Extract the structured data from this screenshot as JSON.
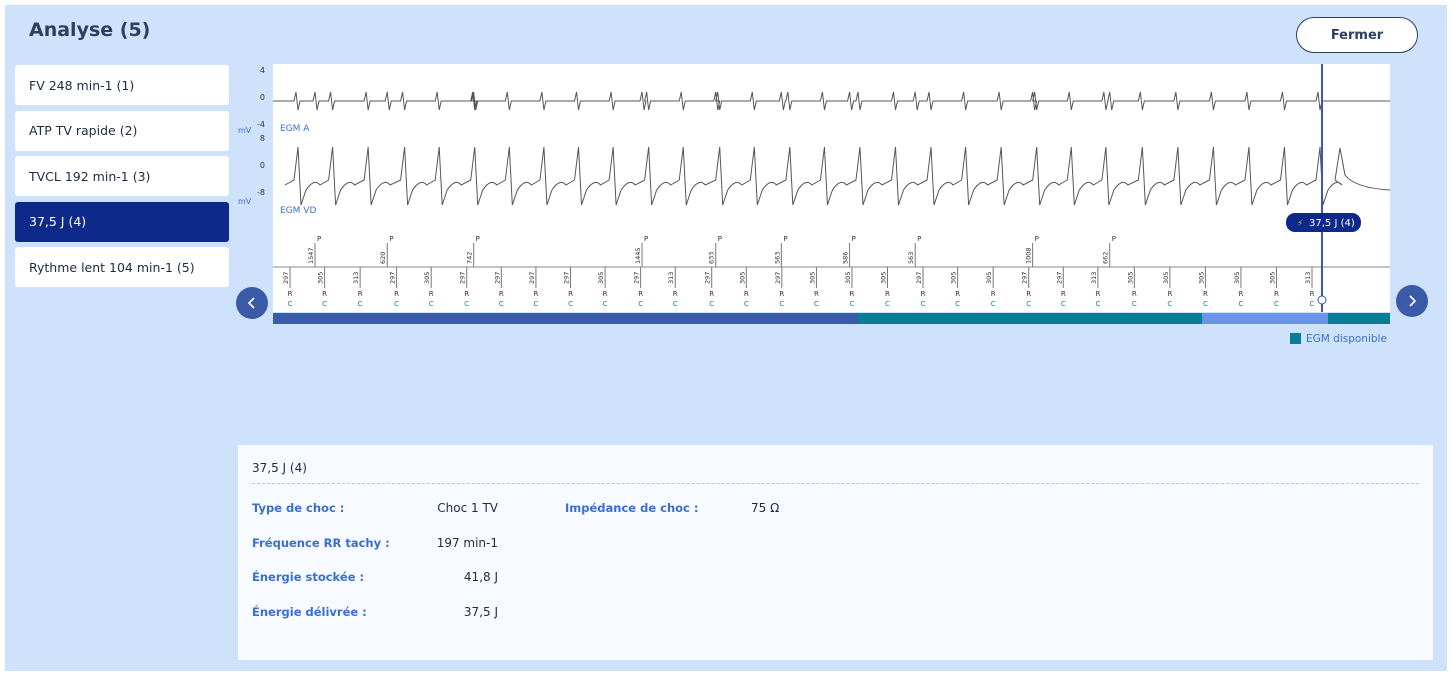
{
  "header": {
    "title": "Analyse (5)",
    "close_button": "Fermer"
  },
  "episodes": {
    "items": [
      "FV 248 min-1 (1)",
      "ATP TV rapide (2)",
      "TVCL 192 min-1 (3)",
      "37,5 J (4)",
      "Rythme lent 104 min-1 (5)"
    ],
    "selected": 3
  },
  "egm": {
    "channel_a": {
      "label": "EGM A",
      "unit": "mV",
      "ticks": [
        "4",
        "0",
        "-4"
      ]
    },
    "channel_vd": {
      "label": "EGM VD",
      "unit": "mV",
      "ticks": [
        "8",
        "0",
        "-8"
      ]
    },
    "atrial_marker": "P",
    "atrial_intervals": [
      1547,
      620,
      742,
      1445,
      633,
      563,
      586,
      563,
      1008,
      662
    ],
    "ventricular_marker": "R",
    "ventricular_sub": "C",
    "ventricular_intervals": [
      297,
      305,
      313,
      297,
      305,
      297,
      297,
      297,
      297,
      305,
      297,
      313,
      297,
      305,
      297,
      305,
      305,
      305,
      297,
      305,
      305,
      297,
      297,
      313,
      305,
      305,
      305,
      305,
      305,
      313
    ],
    "shock_tag": "37,5 J (4)",
    "legend": "EGM disponible"
  },
  "details": {
    "title": "37,5 J (4)",
    "fields": [
      {
        "label": "Type de choc :",
        "value": "Choc 1 TV"
      },
      {
        "label": "Fréquence RR tachy :",
        "value": "197 min-1"
      },
      {
        "label": "Énergie stockée :",
        "value": "41,8 J"
      },
      {
        "label": "Énergie délivrée :",
        "value": "37,5 J"
      }
    ],
    "extra": {
      "label": "Impédance de choc :",
      "value": "75 Ω"
    }
  }
}
